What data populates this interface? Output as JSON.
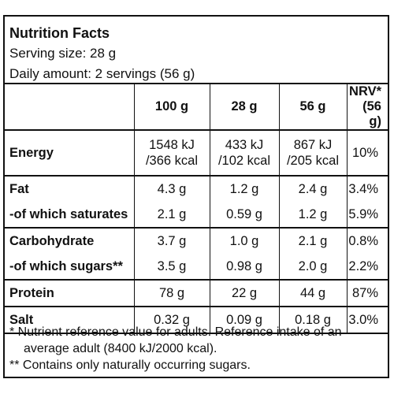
{
  "header": {
    "title": "Nutrition Facts",
    "serving_size": "Serving size: 28 g",
    "daily_amount": "Daily amount: 2 servings (56 g)"
  },
  "table": {
    "columns": [
      "",
      "100 g",
      "28 g",
      "56 g",
      "NRV*",
      "(56 g)"
    ],
    "rows": [
      {
        "name": "Energy",
        "c100": "1548 kJ",
        "c100b": "/366 kcal",
        "c28": "433 kJ",
        "c28b": "/102 kcal",
        "c56": "867 kJ",
        "c56b": "/205 kcal",
        "nrv": "10%"
      },
      {
        "name": "Fat",
        "c100": "4.3 g",
        "c28": "1.2 g",
        "c56": "2.4 g",
        "nrv": "3.4%"
      },
      {
        "name": "-of which saturates",
        "c100": "2.1 g",
        "c28": "0.59 g",
        "c56": "1.2 g",
        "nrv": "5.9%"
      },
      {
        "name": "Carbohydrate",
        "c100": "3.7 g",
        "c28": "1.0 g",
        "c56": "2.1 g",
        "nrv": "0.8%"
      },
      {
        "name": "-of which sugars**",
        "c100": "3.5 g",
        "c28": "0.98 g",
        "c56": "2.0 g",
        "nrv": "2.2%"
      },
      {
        "name": "Protein",
        "c100": "78 g",
        "c28": "22 g",
        "c56": "44 g",
        "nrv": "87%"
      },
      {
        "name": "Salt",
        "c100": "0.32 g",
        "c28": "0.09 g",
        "c56": "0.18 g",
        "nrv": "3.0%"
      }
    ]
  },
  "footnotes": {
    "nrv_line1": "* Nutrient reference value for adults. Reference intake of an",
    "nrv_line2": "average adult (8400 kJ/2000 kcal).",
    "sugars": "** Contains only naturally occurring sugars."
  }
}
